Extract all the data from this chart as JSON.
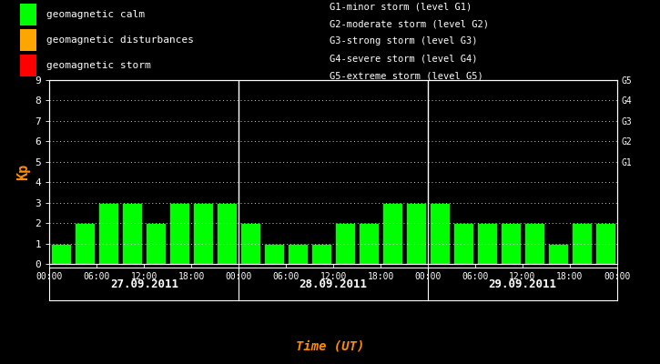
{
  "bg_color": "#000000",
  "plot_bg_color": "#000000",
  "bar_color": "#00ff00",
  "bar_edge_color": "#000000",
  "text_color": "#ffffff",
  "ylabel_color": "#ff8c00",
  "xlabel_color": "#ff8c00",
  "grid_color": "#ffffff",
  "vline_color": "#ffffff",
  "days": [
    "27.09.2011",
    "28.09.2011",
    "29.09.2011"
  ],
  "kp_values": [
    1,
    2,
    3,
    3,
    2,
    3,
    3,
    3,
    2,
    1,
    1,
    1,
    2,
    2,
    3,
    3,
    3,
    2,
    2,
    2,
    2,
    1,
    2,
    2
  ],
  "ylim": [
    0,
    9
  ],
  "yticks": [
    0,
    1,
    2,
    3,
    4,
    5,
    6,
    7,
    8,
    9
  ],
  "ylabel": "Kp",
  "xlabel": "Time (UT)",
  "right_labels": [
    "G1",
    "G2",
    "G3",
    "G4",
    "G5"
  ],
  "right_label_yvals": [
    5,
    6,
    7,
    8,
    9
  ],
  "legend_items": [
    {
      "label": "geomagnetic calm",
      "color": "#00ff00"
    },
    {
      "label": "geomagnetic disturbances",
      "color": "#ffa500"
    },
    {
      "label": "geomagnetic storm",
      "color": "#ff0000"
    }
  ],
  "legend_right_lines": [
    "G1-minor storm (level G1)",
    "G2-moderate storm (level G2)",
    "G3-strong storm (level G3)",
    "G4-severe storm (level G4)",
    "G5-extreme storm (level G5)"
  ],
  "xtick_labels": [
    "00:00",
    "06:00",
    "12:00",
    "18:00",
    "00:00",
    "06:00",
    "12:00",
    "18:00",
    "00:00",
    "06:00",
    "12:00",
    "18:00",
    "00:00"
  ],
  "bar_width": 0.85,
  "font_family": "monospace"
}
